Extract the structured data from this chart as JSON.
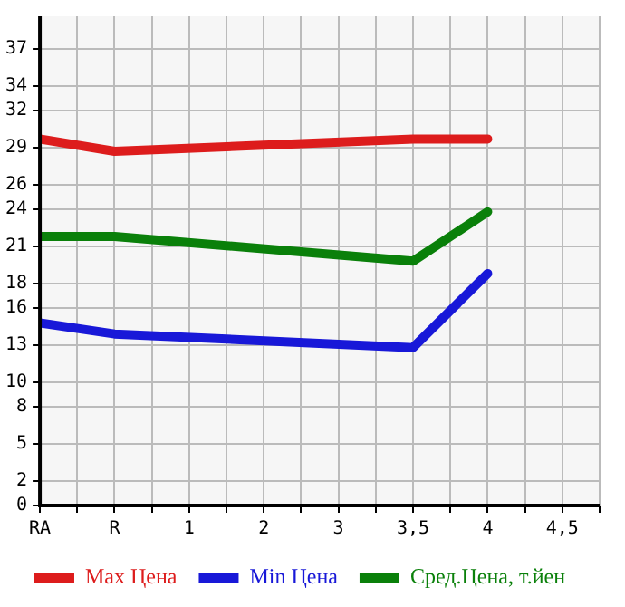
{
  "chart_data": {
    "type": "line",
    "categories": [
      "RA",
      "R",
      "1",
      "2",
      "3",
      "3,5",
      "4",
      "4,5"
    ],
    "ylim": [
      0,
      39.64
    ],
    "yticks": [
      0,
      2,
      5,
      8,
      10,
      13,
      16,
      18,
      21,
      24,
      26,
      29,
      32,
      34,
      37
    ],
    "grid": true,
    "legend": "bottom",
    "marker": "none",
    "line_style": "solid",
    "series": [
      {
        "name": "Max Цена",
        "color": "#dd1c1c",
        "values": [
          29.7,
          28.7,
          null,
          null,
          null,
          29.7,
          29.7,
          null
        ]
      },
      {
        "name": "Min Цена",
        "color": "#1818d8",
        "values": [
          14.8,
          13.9,
          null,
          null,
          null,
          12.8,
          18.8,
          null
        ]
      },
      {
        "name": "Сред.Цена, т.йен",
        "color": "#0a800a",
        "values": [
          21.8,
          21.8,
          null,
          null,
          null,
          19.8,
          23.8,
          null
        ]
      }
    ]
  }
}
